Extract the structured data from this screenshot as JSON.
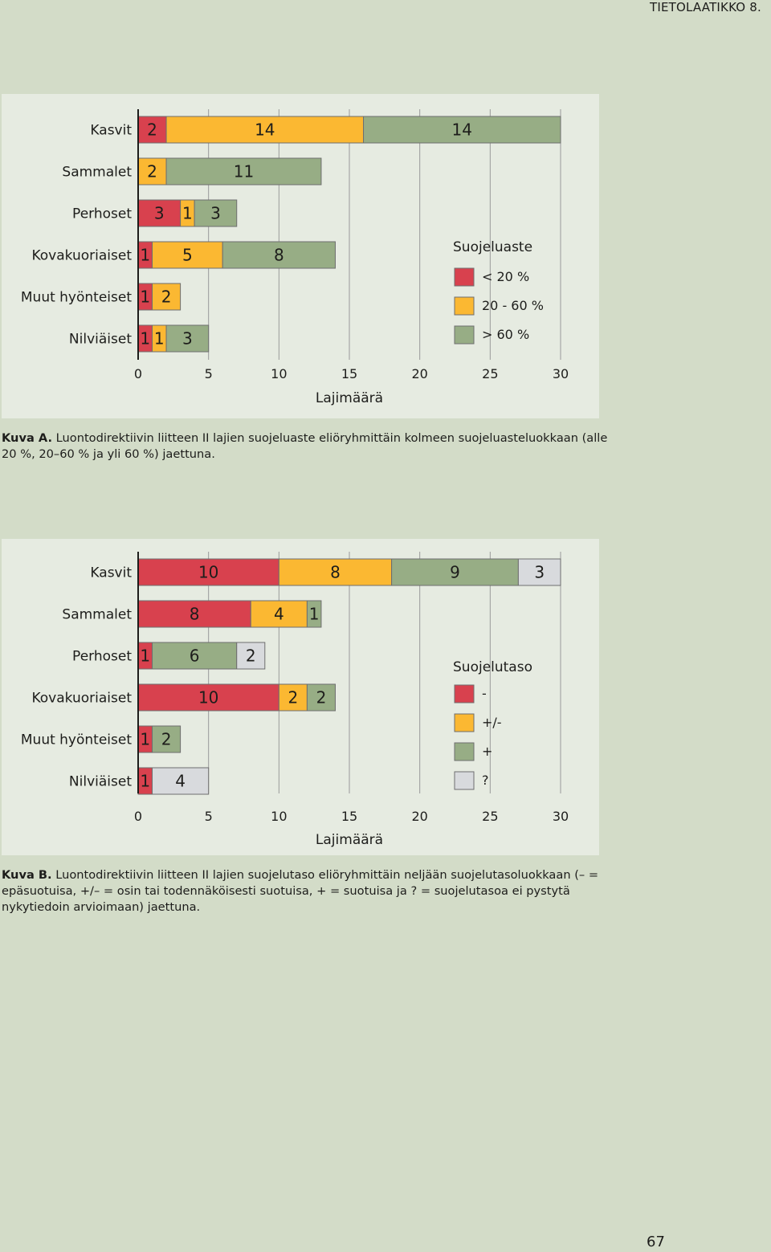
{
  "header": {
    "label": "TIETOLAATIKKO 8."
  },
  "page_number": "67",
  "captions": {
    "a": {
      "prefix": "Kuva A.",
      "text": " Luontodirektiivin liitteen II lajien suojeluaste eliöryhmittäin kolmeen suojeluasteluokkaan (alle 20 %, 20–60 % ja yli 60 %) jaettuna."
    },
    "b": {
      "prefix": "Kuva B.",
      "text": " Luontodirektiivin liitteen II lajien suojelutaso eliöryhmittäin neljään suojelutasoluokkaan (– = epäsuotuisa, +/– = osin tai todennäköisesti suotuisa, + = suotuisa ja ? = suojelutasoa ei pystytä nykytiedoin arvioimaan) jaettuna."
    }
  },
  "chart_data": [
    {
      "type": "bar",
      "orientation": "horizontal",
      "stacked": true,
      "categories": [
        "Kasvit",
        "Sammalet",
        "Perhoset",
        "Kovakuoriaiset",
        "Muut hyönteiset",
        "Nilviäiset"
      ],
      "series": [
        {
          "name": "< 20 %",
          "color": "#d8414e",
          "values": [
            2,
            0,
            3,
            1,
            1,
            1
          ]
        },
        {
          "name": "20 - 60 %",
          "color": "#fbb832",
          "values": [
            14,
            2,
            1,
            5,
            2,
            1
          ]
        },
        {
          "name": "> 60 %",
          "color": "#97ad85",
          "values": [
            14,
            11,
            3,
            8,
            0,
            3
          ]
        }
      ],
      "xlabel": "Lajimäärä",
      "xlim": [
        0,
        30
      ],
      "xticks": [
        0,
        5,
        10,
        15,
        20,
        25,
        30
      ],
      "legend_title": "Suojeluaste",
      "legend_position": "right",
      "grid": true
    },
    {
      "type": "bar",
      "orientation": "horizontal",
      "stacked": true,
      "categories": [
        "Kasvit",
        "Sammalet",
        "Perhoset",
        "Kovakuoriaiset",
        "Muut hyönteiset",
        "Nilviäiset"
      ],
      "series": [
        {
          "name": "-",
          "color": "#d8414e",
          "values": [
            10,
            8,
            1,
            10,
            1,
            1
          ]
        },
        {
          "name": "+/-",
          "color": "#fbb832",
          "values": [
            8,
            4,
            0,
            2,
            0,
            0
          ]
        },
        {
          "name": "+",
          "color": "#97ad85",
          "values": [
            9,
            1,
            6,
            2,
            2,
            0
          ]
        },
        {
          "name": "?",
          "color": "#d8dadd",
          "values": [
            3,
            0,
            2,
            0,
            0,
            4
          ]
        }
      ],
      "xlabel": "Lajimäärä",
      "xlim": [
        0,
        30
      ],
      "xticks": [
        0,
        5,
        10,
        15,
        20,
        25,
        30
      ],
      "legend_title": "Suojelutaso",
      "legend_position": "right",
      "grid": true
    }
  ]
}
